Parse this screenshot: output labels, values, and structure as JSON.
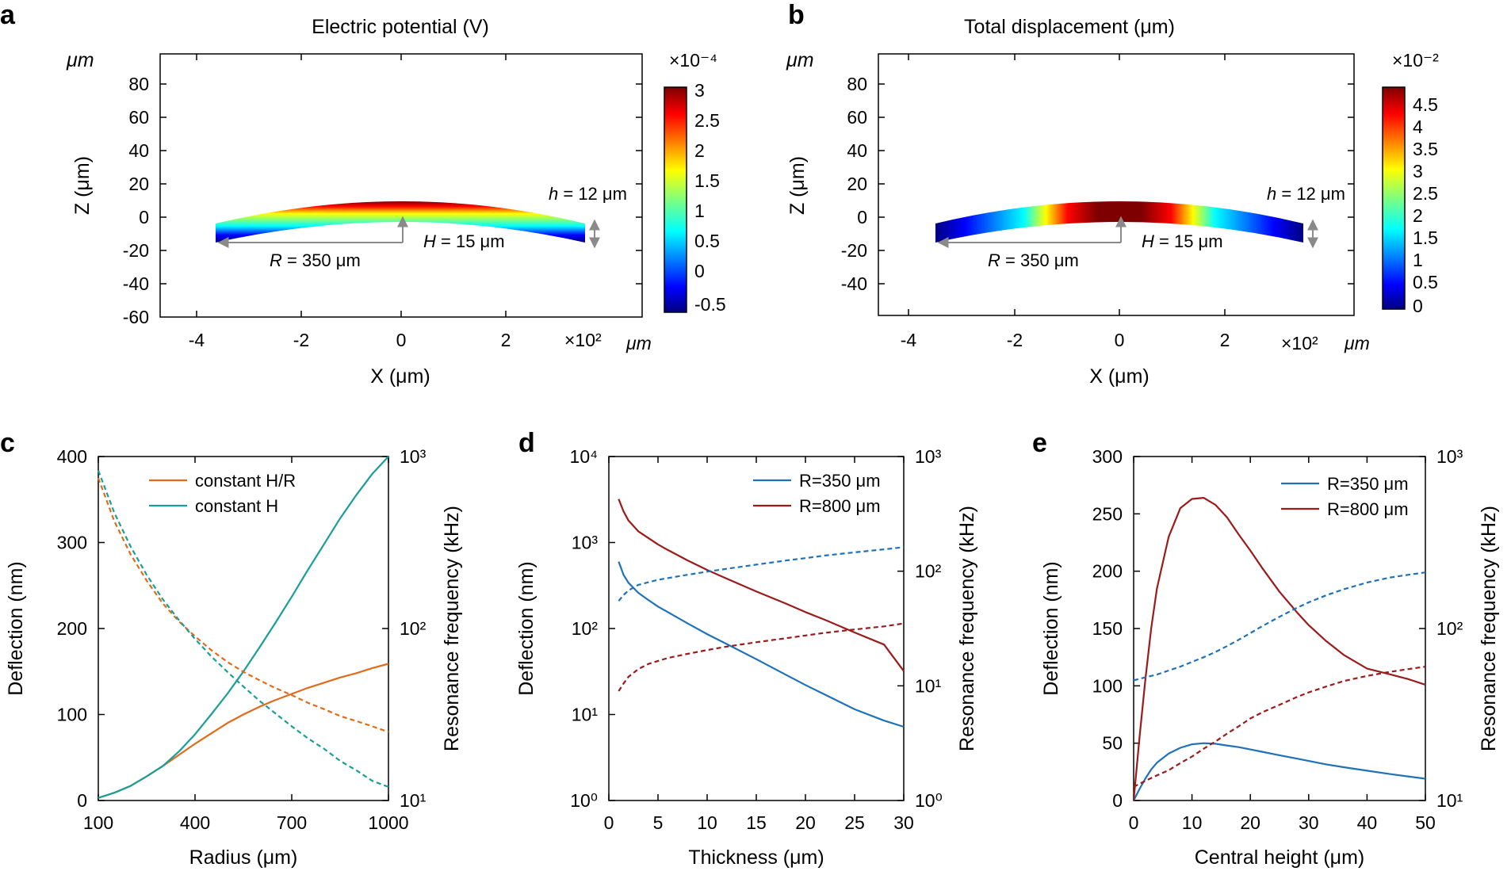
{
  "colors": {
    "orange": "#e06c1b",
    "teal": "#1a9e99",
    "blue": "#1f72b8",
    "darkred": "#9b1b1b",
    "gray": "#8a8a8a"
  },
  "panel_a": {
    "label": "a",
    "title": "Electric potential (V)",
    "unit_top": "μm",
    "unit_right": "μm",
    "xlabel": "X (μm)",
    "ylabel": "Z (μm)",
    "x_exp": "×10²",
    "xticks": [
      "-4",
      "-2",
      "0",
      "2"
    ],
    "yticks": [
      "80",
      "60",
      "40",
      "20",
      "0",
      "-20",
      "-40",
      "-60"
    ],
    "cb_exp": "×10⁻⁴",
    "cb_ticks": [
      "3",
      "2.5",
      "2",
      "1.5",
      "1",
      "0.5",
      "0",
      "-0.5"
    ],
    "ann_h_italic": "h",
    "ann_h_rest": " = 12 μm",
    "ann_H_italic": "H",
    "ann_H_rest": " = 15 μm",
    "ann_R_italic": "R",
    "ann_R_rest": " = 350 μm"
  },
  "panel_b": {
    "label": "b",
    "title": "Total displacement (μm)",
    "unit_top": "μm",
    "unit_right": "μm",
    "xlabel": "X (μm)",
    "ylabel": "Z (μm)",
    "x_exp": "×10²",
    "xticks": [
      "-4",
      "-2",
      "0",
      "2"
    ],
    "yticks": [
      "80",
      "60",
      "40",
      "20",
      "0",
      "-20",
      "-40"
    ],
    "cb_exp": "×10⁻²",
    "cb_ticks": [
      "4.5",
      "4",
      "3.5",
      "3",
      "2.5",
      "2",
      "1.5",
      "1",
      "0.5",
      "0"
    ],
    "ann_h_italic": "h",
    "ann_h_rest": " = 12 μm",
    "ann_H_italic": "H",
    "ann_H_rest": " = 15 μm",
    "ann_R_italic": "R",
    "ann_R_rest": " = 350 μm"
  },
  "chart_data": [
    {
      "panel": "c",
      "type": "line",
      "xlabel": "Radius (μm)",
      "ylabel": "Deflection (nm)",
      "ylabel_right": "Resonance frequency (kHz)",
      "xlim": [
        100,
        1000
      ],
      "xticks": [
        "100",
        "400",
        "700",
        "1000"
      ],
      "ylim": [
        0,
        400
      ],
      "yticks": [
        "0",
        "100",
        "200",
        "300",
        "400"
      ],
      "y2_log": [
        1,
        3
      ],
      "y2ticks": [
        "10¹",
        "10²",
        "10³"
      ],
      "legend": [
        "constant H/R",
        "constant H"
      ],
      "x": [
        100,
        150,
        200,
        250,
        300,
        350,
        400,
        450,
        500,
        550,
        600,
        650,
        700,
        750,
        800,
        850,
        900,
        950,
        1000
      ],
      "series": [
        {
          "name": "constant H/R",
          "axis": "left",
          "style": "solid",
          "color": "orange",
          "values": [
            3,
            9,
            17,
            28,
            40,
            53,
            66,
            78,
            90,
            100,
            109,
            117,
            124,
            131,
            137,
            143,
            148,
            154,
            159
          ]
        },
        {
          "name": "constant H",
          "axis": "left",
          "style": "solid",
          "color": "teal",
          "values": [
            3,
            9,
            17,
            28,
            40,
            57,
            77,
            100,
            124,
            150,
            178,
            207,
            237,
            268,
            298,
            328,
            355,
            380,
            400
          ]
        },
        {
          "name": "constant H/R frequency",
          "axis": "right",
          "style": "dashed",
          "color": "orange",
          "values": [
            750,
            420,
            270,
            190,
            140,
            110,
            90,
            75,
            64,
            56,
            50,
            45,
            41,
            37,
            34,
            31,
            29,
            27,
            25
          ]
        },
        {
          "name": "constant H frequency",
          "axis": "right",
          "style": "dashed",
          "color": "teal",
          "values": [
            830,
            470,
            300,
            205,
            148,
            112,
            87,
            69,
            56,
            46,
            38,
            32,
            27,
            23,
            20,
            17,
            15,
            13,
            12
          ]
        }
      ]
    },
    {
      "panel": "d",
      "type": "line",
      "xlabel": "Thickness (μm)",
      "ylabel": "Deflection (nm)",
      "ylabel_right": "Resonance frequency (kHz)",
      "xlim": [
        0,
        30
      ],
      "xticks": [
        "0",
        "5",
        "10",
        "15",
        "20",
        "25",
        "30"
      ],
      "ylog": [
        0,
        4
      ],
      "yticks": [
        "10⁰",
        "10¹",
        "10²",
        "10³",
        "10⁴"
      ],
      "y2_log": [
        0,
        3
      ],
      "y2ticks": [
        "10⁰",
        "10¹",
        "10²",
        "10³"
      ],
      "legend": [
        "R=350 μm",
        "R=800 μm"
      ],
      "x": [
        1,
        1.5,
        2,
        3,
        4,
        5,
        6,
        8,
        10,
        12,
        15,
        18,
        20,
        22,
        25,
        28,
        30
      ],
      "series": [
        {
          "name": "R=350 μm",
          "axis": "left",
          "style": "solid",
          "color": "blue",
          "values": [
            600,
            420,
            340,
            260,
            215,
            180,
            155,
            115,
            86,
            66,
            44,
            29,
            22,
            17,
            11.5,
            8.5,
            7.2
          ]
        },
        {
          "name": "R=800 μm",
          "axis": "left",
          "style": "solid",
          "color": "darkred",
          "values": [
            3200,
            2300,
            1800,
            1350,
            1130,
            950,
            820,
            620,
            480,
            380,
            270,
            195,
            155,
            126,
            90,
            65,
            32
          ]
        },
        {
          "name": "R=350 μm frequency",
          "axis": "right",
          "style": "dashed",
          "color": "blue",
          "values": [
            55,
            62,
            68,
            76,
            80,
            84,
            87,
            93,
            99,
            105,
            114,
            124,
            130,
            137,
            146,
            155,
            162
          ]
        },
        {
          "name": "R=800 μm frequency",
          "axis": "right",
          "style": "dashed",
          "color": "darkred",
          "values": [
            9,
            10.5,
            12,
            14,
            15.5,
            16.5,
            17.5,
            19,
            20.5,
            22,
            24,
            26,
            27.5,
            29,
            31,
            33,
            35
          ]
        }
      ]
    },
    {
      "panel": "e",
      "type": "line",
      "xlabel": "Central height (μm)",
      "ylabel": "Deflection (nm)",
      "ylabel_right": "Resonance frequency (kHz)",
      "xlim": [
        0,
        50
      ],
      "xticks": [
        "0",
        "10",
        "20",
        "30",
        "40",
        "50"
      ],
      "ylim": [
        0,
        300
      ],
      "yticks": [
        "0",
        "50",
        "100",
        "150",
        "200",
        "250",
        "300"
      ],
      "y2_log": [
        1,
        3
      ],
      "y2ticks": [
        "10¹",
        "10²",
        "10³"
      ],
      "legend": [
        "R=350 μm",
        "R=800 μm"
      ],
      "x": [
        0,
        1,
        2,
        3,
        4,
        6,
        8,
        10,
        12,
        14,
        16,
        18,
        20,
        22,
        25,
        28,
        30,
        33,
        36,
        40,
        44,
        47,
        50
      ],
      "series": [
        {
          "name": "R=350 μm",
          "axis": "left",
          "style": "solid",
          "color": "blue",
          "values": [
            0,
            10,
            19,
            27,
            33,
            41,
            46,
            49,
            50,
            49.5,
            48,
            46.5,
            44.5,
            42.5,
            39.5,
            36.5,
            34.5,
            31.5,
            29,
            26,
            23,
            21,
            19
          ]
        },
        {
          "name": "R=800 μm",
          "axis": "left",
          "style": "solid",
          "color": "darkred",
          "values": [
            0,
            55,
            105,
            150,
            185,
            230,
            255,
            263,
            264,
            258,
            247,
            232,
            218,
            203,
            182,
            164,
            153,
            139,
            127,
            115,
            110,
            106,
            101
          ]
        },
        {
          "name": "R=350 μm frequency",
          "axis": "right",
          "style": "dashed",
          "color": "blue",
          "values": [
            50,
            51,
            52,
            53,
            54,
            57,
            60,
            64,
            68,
            73,
            79,
            86,
            94,
            103,
            117,
            132,
            142,
            156,
            169,
            185,
            198,
            205,
            212
          ]
        },
        {
          "name": "R=800 μm frequency",
          "axis": "right",
          "style": "dashed",
          "color": "darkred",
          "values": [
            12,
            12.5,
            13,
            13.5,
            14,
            15,
            16.5,
            18,
            20,
            22,
            24.5,
            27,
            30,
            32.5,
            36,
            40,
            42.5,
            46,
            49.5,
            53,
            56,
            58,
            60
          ]
        }
      ]
    }
  ]
}
